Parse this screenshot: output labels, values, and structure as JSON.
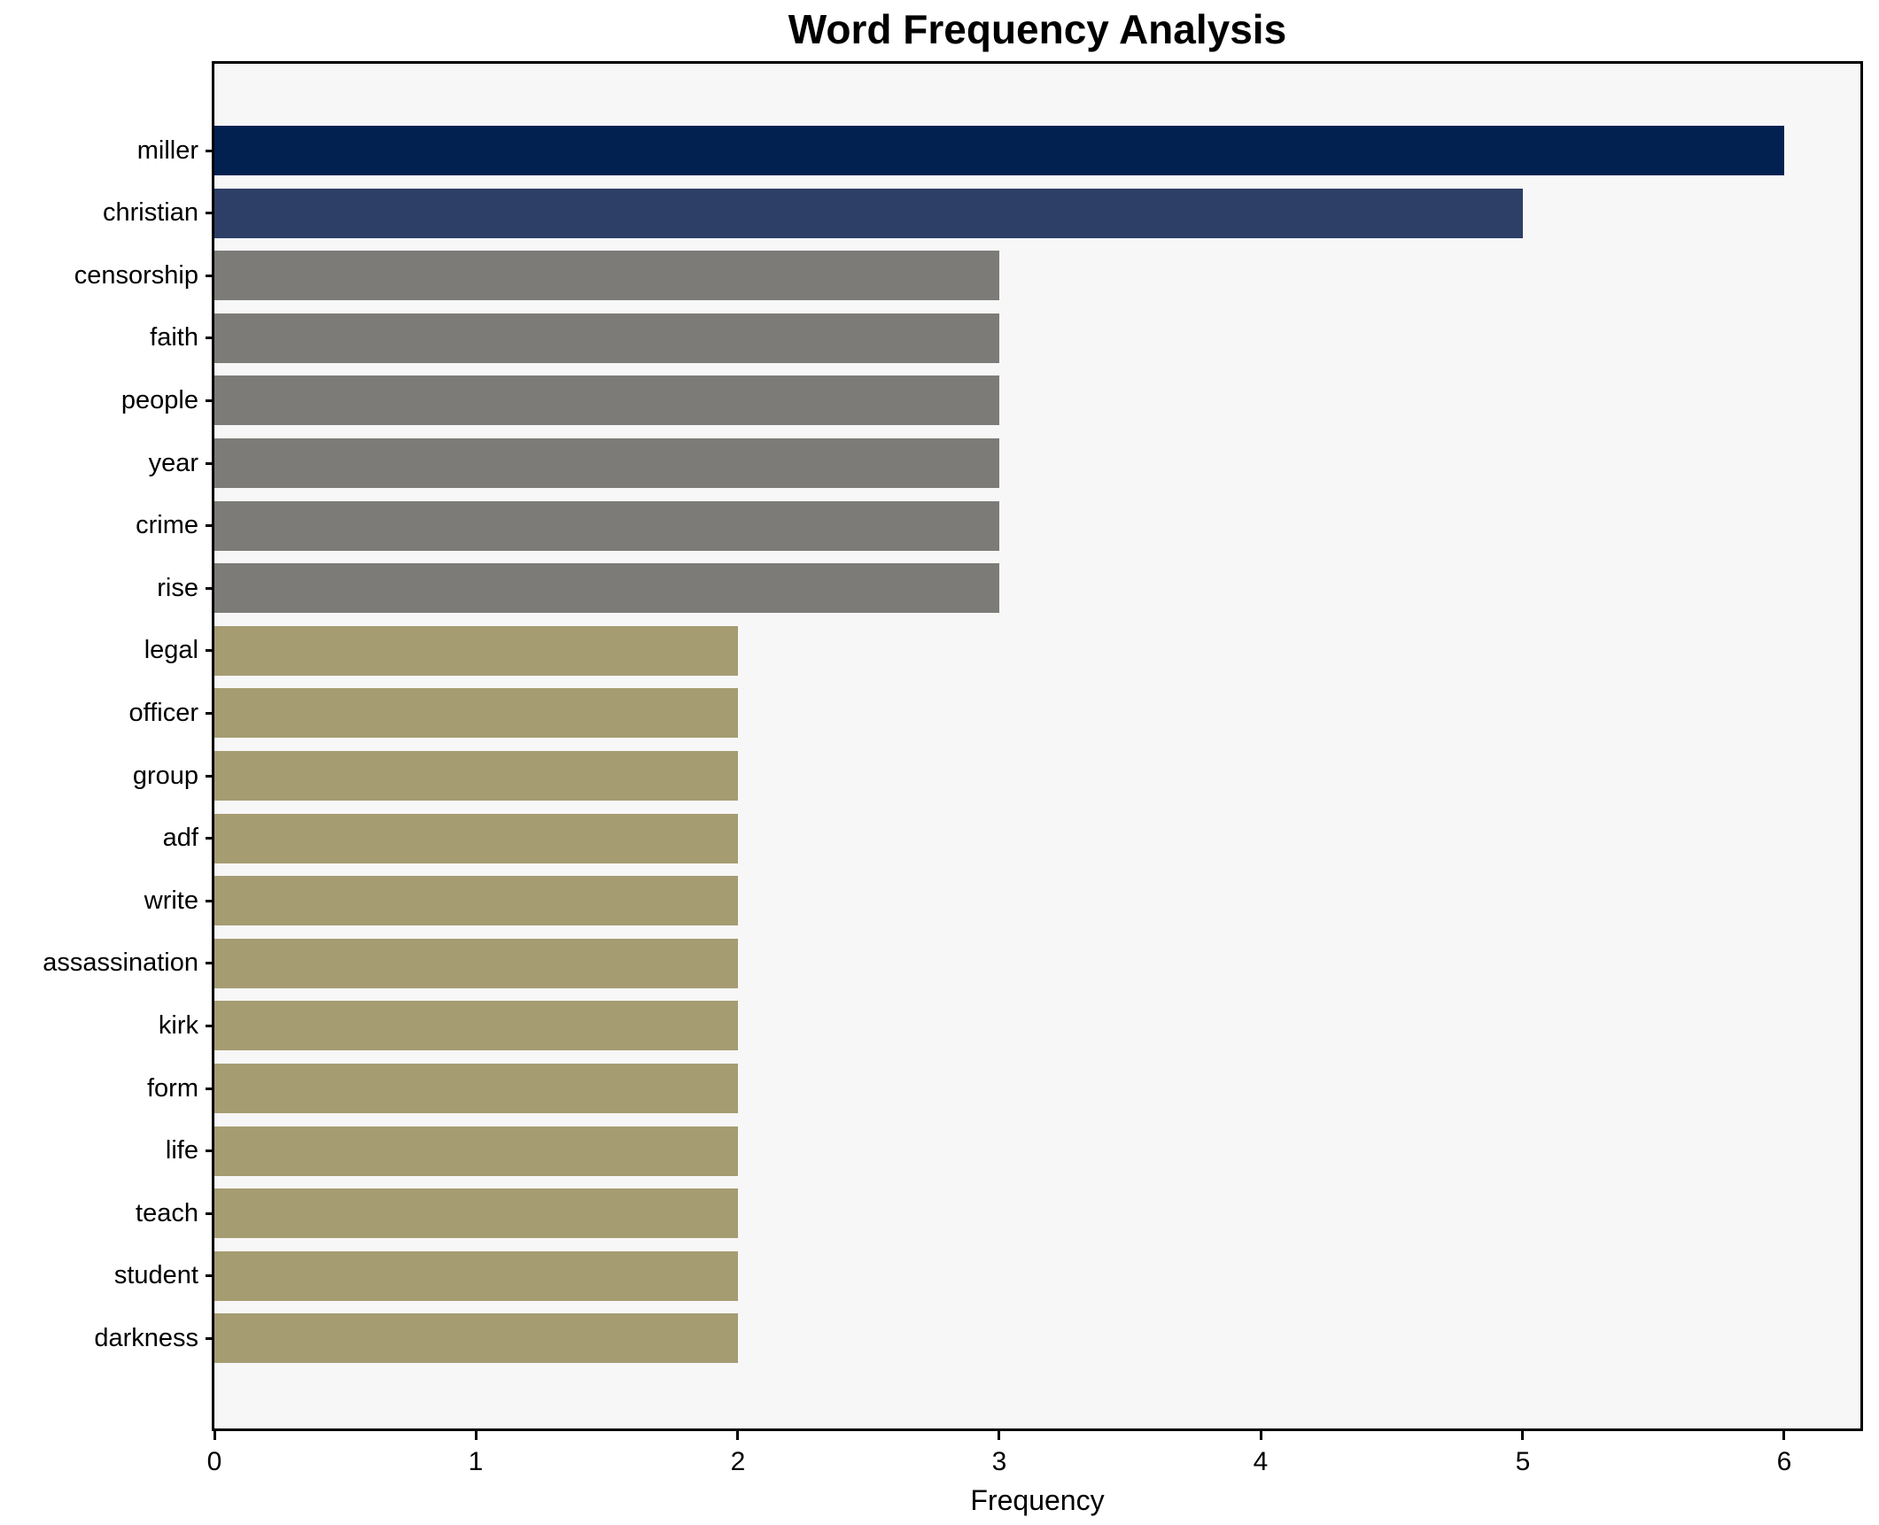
{
  "chart_data": {
    "type": "bar",
    "orientation": "horizontal",
    "title": "Word Frequency Analysis",
    "xlabel": "Frequency",
    "ylabel": "",
    "grid": false,
    "legend": false,
    "categories": [
      "miller",
      "christian",
      "censorship",
      "faith",
      "people",
      "year",
      "crime",
      "rise",
      "legal",
      "officer",
      "group",
      "adf",
      "write",
      "assassination",
      "kirk",
      "form",
      "life",
      "teach",
      "student",
      "darkness"
    ],
    "values": [
      6,
      5,
      3,
      3,
      3,
      3,
      3,
      3,
      2,
      2,
      2,
      2,
      2,
      2,
      2,
      2,
      2,
      2,
      2,
      2
    ],
    "bar_colors": [
      "#022150",
      "#2d3f66",
      "#7c7b77",
      "#7c7b77",
      "#7c7b77",
      "#7c7b77",
      "#7c7b77",
      "#7c7b77",
      "#a69c72",
      "#a69c72",
      "#a69c72",
      "#a69c72",
      "#a69c72",
      "#a69c72",
      "#a69c72",
      "#a69c72",
      "#a69c72",
      "#a69c72",
      "#a69c72",
      "#a69c72"
    ],
    "x_ticks": [
      0,
      1,
      2,
      3,
      4,
      5,
      6
    ],
    "xlim": [
      0,
      6.3
    ],
    "colors": {
      "plot_background": "#f7f7f8",
      "figure_background": "#ffffff",
      "spine": "#000000",
      "text": "#000000"
    }
  }
}
